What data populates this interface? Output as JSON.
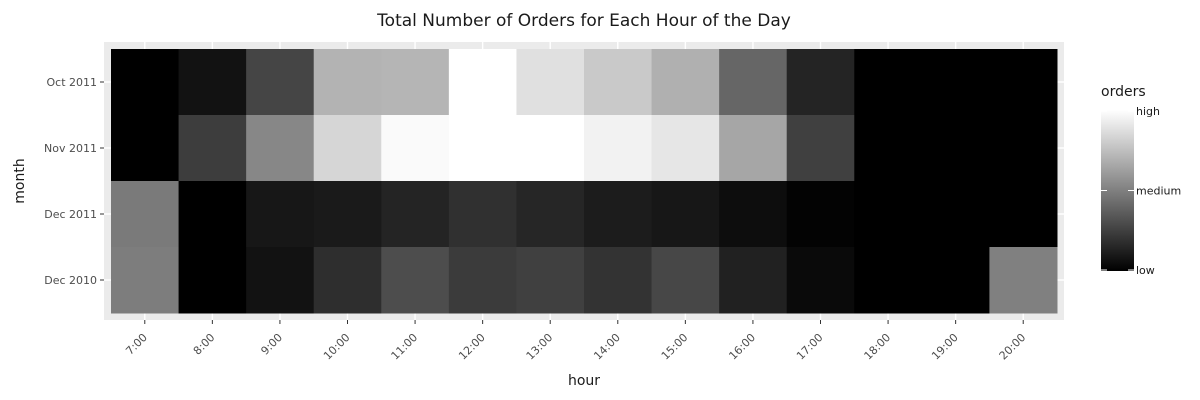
{
  "chart_data": {
    "type": "heatmap",
    "title": "Total Number of Orders for Each Hour of the Day",
    "xlabel": "hour",
    "ylabel": "month",
    "x_categories": [
      "7:00",
      "8:00",
      "9:00",
      "10:00",
      "11:00",
      "12:00",
      "13:00",
      "14:00",
      "15:00",
      "16:00",
      "17:00",
      "18:00",
      "19:00",
      "20:00"
    ],
    "y_categories": [
      "Oct 2011",
      "Nov 2011",
      "Dec 2011",
      "Dec 2010"
    ],
    "values": [
      [
        0.0,
        0.07,
        0.27,
        0.7,
        0.71,
        1.0,
        0.88,
        0.79,
        0.69,
        0.4,
        0.14,
        0.0,
        0.0,
        0.0
      ],
      [
        0.0,
        0.24,
        0.53,
        0.84,
        0.98,
        1.0,
        1.0,
        0.95,
        0.9,
        0.65,
        0.25,
        0.0,
        0.0,
        0.0
      ],
      [
        0.48,
        0.0,
        0.09,
        0.1,
        0.14,
        0.19,
        0.15,
        0.11,
        0.09,
        0.05,
        0.01,
        0.0,
        0.0,
        0.0
      ],
      [
        0.49,
        0.0,
        0.07,
        0.18,
        0.3,
        0.23,
        0.25,
        0.2,
        0.28,
        0.13,
        0.04,
        0.0,
        0.0,
        0.5
      ]
    ],
    "value_scale": "relative 0 (low) to 1 (high)",
    "legend": {
      "title": "orders",
      "labels": [
        "high",
        "medium",
        "low"
      ],
      "placement": "right",
      "low_color": "#000000",
      "high_color": "#ffffff"
    },
    "grid": true
  },
  "colors": {
    "panel_background": "#ebebeb",
    "gridline": "#ffffff",
    "text": "#1a1a1a",
    "tick_text": "#4d4d4d"
  }
}
